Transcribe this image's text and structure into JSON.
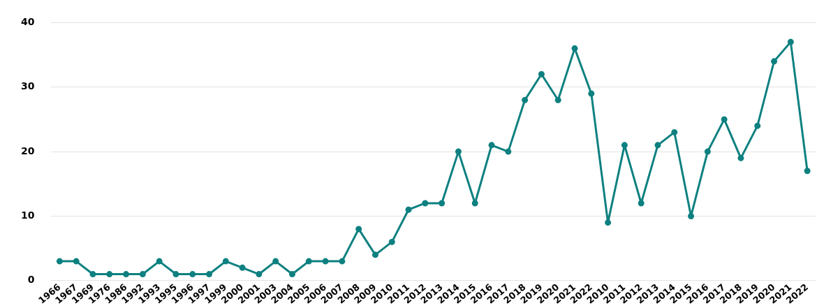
{
  "chart_data": {
    "type": "line",
    "categories": [
      "1966",
      "1967",
      "1969",
      "1976",
      "1986",
      "1992",
      "1993",
      "1995",
      "1996",
      "1997",
      "1999",
      "2000",
      "2001",
      "2003",
      "2004",
      "2005",
      "2006",
      "2007",
      "2008",
      "2009",
      "2010",
      "2011",
      "2012",
      "2013",
      "2014",
      "2015",
      "2016",
      "2017",
      "2018",
      "2019",
      "2020",
      "2021",
      "2022",
      "2010",
      "2011",
      "2012",
      "2013",
      "2014",
      "2015",
      "2016",
      "2017",
      "2018",
      "2019",
      "2020",
      "2021",
      "2022"
    ],
    "series": [
      {
        "color": "#0e8080",
        "values": [
          3,
          3,
          1,
          1,
          1,
          1,
          3,
          1,
          1,
          1,
          3,
          2,
          1,
          3,
          1,
          3,
          3,
          3,
          8,
          4,
          6,
          11,
          12,
          12,
          20,
          12,
          21,
          20,
          28,
          32,
          28,
          36,
          29,
          9,
          21,
          12,
          21,
          23,
          10,
          20,
          25,
          19,
          24,
          34,
          37,
          17
        ]
      }
    ],
    "ylim": [
      0,
      40
    ],
    "yticks": [
      0,
      10,
      20,
      30,
      40
    ],
    "grid": "y",
    "marker": "circle",
    "line_style": "solid"
  }
}
